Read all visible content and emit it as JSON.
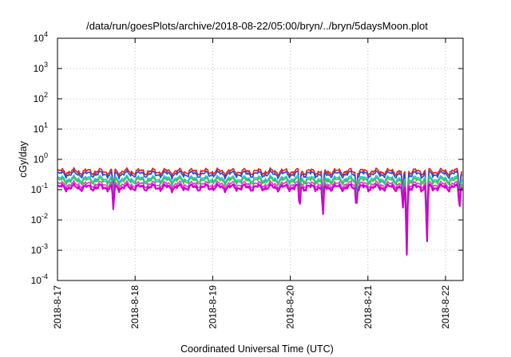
{
  "chart_data": {
    "type": "line",
    "title": "/data/run/goesPlots/archive/2018-08-22/05:00/bryn/../bryn/5daysMoon.plot",
    "xlabel": "Coordinated Universal Time (UTC)",
    "ylabel": "cGy/day",
    "yscale": "log",
    "ylim": [
      0.0001,
      10000
    ],
    "y_ticks": [
      {
        "base": "10",
        "exp": "-4",
        "value": 0.0001
      },
      {
        "base": "10",
        "exp": "-3",
        "value": 0.001
      },
      {
        "base": "10",
        "exp": "-2",
        "value": 0.01
      },
      {
        "base": "10",
        "exp": "-1",
        "value": 0.1
      },
      {
        "base": "10",
        "exp": "0",
        "value": 1
      },
      {
        "base": "10",
        "exp": "1",
        "value": 10
      },
      {
        "base": "10",
        "exp": "2",
        "value": 100
      },
      {
        "base": "10",
        "exp": "3",
        "value": 1000
      },
      {
        "base": "10",
        "exp": "4",
        "value": 10000
      }
    ],
    "xlim": [
      "2018-08-17 00:00",
      "2018-08-22 05:00"
    ],
    "x_ticks": [
      {
        "label": "2018-8-17",
        "day": 0
      },
      {
        "label": "2018-8-18",
        "day": 1
      },
      {
        "label": "2018-8-19",
        "day": 2
      },
      {
        "label": "2018-8-20",
        "day": 3
      },
      {
        "label": "2018-8-21",
        "day": 4
      },
      {
        "label": "2018-8-22",
        "day": 5
      }
    ],
    "grid": true,
    "legend": "none",
    "series": [
      {
        "color": "#e0231b",
        "level": 0.4
      },
      {
        "color": "#2b4bd6",
        "level": 0.33
      },
      {
        "color": "#1ec8c8",
        "level": 0.23
      },
      {
        "color": "#39c24a",
        "level": 0.2
      },
      {
        "color": "#e040d0",
        "level": 0.15
      },
      {
        "color": "#d000d0",
        "level": 0.12
      }
    ],
    "dips": [
      {
        "day": 0.72,
        "value": 0.07
      },
      {
        "day": 3.12,
        "value": 0.07
      },
      {
        "day": 3.42,
        "value": 0.035
      },
      {
        "day": 3.85,
        "value": 0.07
      },
      {
        "day": 4.45,
        "value": 0.07
      },
      {
        "day": 4.5,
        "value": 0.0015
      },
      {
        "day": 4.76,
        "value": 0.004
      },
      {
        "day": 5.18,
        "value": 0.07
      }
    ]
  }
}
